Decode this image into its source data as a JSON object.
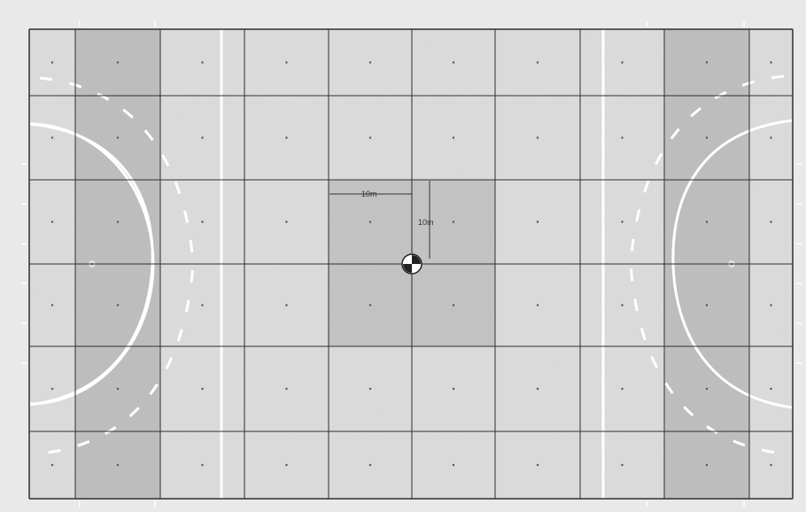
{
  "diagram": {
    "type": "hockey-field-measurement-grid",
    "grid": {
      "columns": 9,
      "rows": 6
    },
    "shaded_columns": [
      1,
      7
    ],
    "center_zone": {
      "columns": [
        3,
        4
      ],
      "rows": [
        2,
        3
      ]
    },
    "labels": {
      "horizontal_measure": "10m",
      "vertical_measure": "10m"
    },
    "center_marker_icon": "center-target-icon",
    "colors": {
      "surround": "#e9e9e9",
      "field": "#dcdcdc",
      "shaded": "#bdbdbd",
      "grid_line": "#2f2f2f",
      "marking_line": "#ffffff"
    }
  }
}
